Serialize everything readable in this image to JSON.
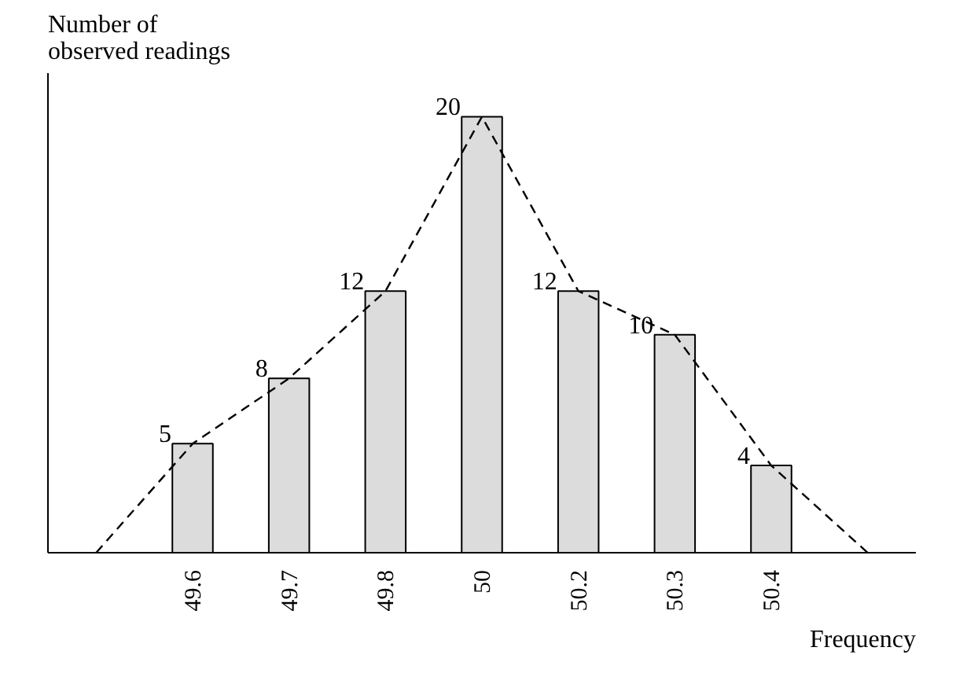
{
  "chart_data": {
    "type": "bar",
    "xlabel": "Frequency",
    "ylabel": "Number of observed readings",
    "categories": [
      null,
      "49.6",
      "49.7",
      "49.8",
      "50",
      "50.2",
      "50.3",
      "50.4",
      null
    ],
    "series": [
      {
        "color": "#dcdcdc",
        "values": [
          null,
          5,
          8,
          12,
          20,
          12,
          10,
          4,
          null
        ],
        "value_labels": [
          null,
          "5",
          "8",
          "12",
          "20",
          "12",
          "10",
          "4",
          null
        ]
      },
      {
        "type": "line",
        "color": "#000000",
        "line_style": "dashed",
        "values": [
          0,
          5,
          8,
          12,
          20,
          12,
          10,
          4,
          0
        ]
      }
    ],
    "ylim": [
      0,
      22
    ],
    "tick_labels": "x",
    "grid": false
  }
}
